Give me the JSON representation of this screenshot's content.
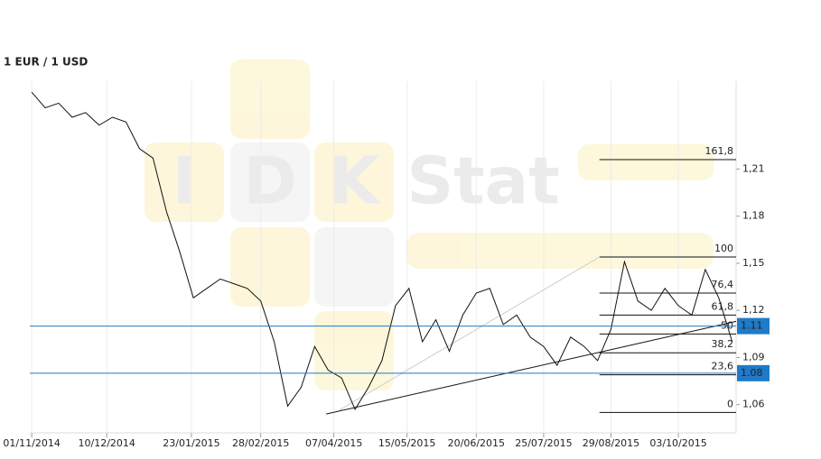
{
  "chart_data": {
    "type": "line",
    "title": "1 EUR / 1 USD",
    "watermark": {
      "letters": [
        "I",
        "D",
        "K"
      ],
      "word": "Stat"
    },
    "x": [
      "01/11/2014",
      "08/11/2014",
      "15/11/2014",
      "22/11/2014",
      "29/11/2014",
      "06/12/2014",
      "13/12/2014",
      "20/12/2014",
      "27/12/2014",
      "03/01/2015",
      "10/01/2015",
      "17/01/2015",
      "24/01/2015",
      "31/01/2015",
      "07/02/2015",
      "14/02/2015",
      "21/02/2015",
      "28/02/2015",
      "07/03/2015",
      "14/03/2015",
      "21/03/2015",
      "28/03/2015",
      "04/04/2015",
      "11/04/2015",
      "18/04/2015",
      "25/04/2015",
      "02/05/2015",
      "09/05/2015",
      "16/05/2015",
      "23/05/2015",
      "30/05/2015",
      "06/06/2015",
      "13/06/2015",
      "20/06/2015",
      "27/06/2015",
      "04/07/2015",
      "11/07/2015",
      "18/07/2015",
      "25/07/2015",
      "01/08/2015",
      "08/08/2015",
      "15/08/2015",
      "22/08/2015",
      "29/08/2015",
      "05/09/2015",
      "12/09/2015",
      "19/09/2015",
      "26/09/2015",
      "03/10/2015",
      "10/10/2015",
      "17/10/2015",
      "24/10/2015",
      "31/10/2015"
    ],
    "series": [
      {
        "color": "#111111",
        "values": [
          1.259,
          1.249,
          1.252,
          1.243,
          1.246,
          1.238,
          1.243,
          1.24,
          1.223,
          1.217,
          1.183,
          1.157,
          1.128,
          1.134,
          1.14,
          1.137,
          1.134,
          1.126,
          1.1,
          1.059,
          1.071,
          1.097,
          1.082,
          1.077,
          1.057,
          1.071,
          1.088,
          1.123,
          1.134,
          1.1,
          1.114,
          1.094,
          1.117,
          1.131,
          1.134,
          1.111,
          1.117,
          1.103,
          1.097,
          1.085,
          1.103,
          1.097,
          1.088,
          1.108,
          1.151,
          1.126,
          1.12,
          1.134,
          1.123,
          1.117,
          1.146,
          1.128,
          1.1
        ]
      }
    ],
    "xlim": [
      "31/10/2014",
      "02/11/2015"
    ],
    "xticks": [
      "01/11/2014",
      "10/12/2014",
      "23/01/2015",
      "28/02/2015",
      "07/04/2015",
      "15/05/2015",
      "20/06/2015",
      "25/07/2015",
      "29/08/2015",
      "03/10/2015"
    ],
    "ylim": [
      1.042,
      1.266
    ],
    "yticks": [
      {
        "value": 1.06,
        "label": "1,06"
      },
      {
        "value": 1.09,
        "label": "1,09"
      },
      {
        "value": 1.12,
        "label": "1,12"
      },
      {
        "value": 1.15,
        "label": "1,15"
      },
      {
        "value": 1.18,
        "label": "1,18"
      },
      {
        "value": 1.21,
        "label": "1,21"
      }
    ],
    "grid": "x",
    "fib_start": "23/08/2015",
    "fib_levels": [
      {
        "name": "161,8",
        "value": 1.216
      },
      {
        "name": "100",
        "value": 1.154
      },
      {
        "name": "76,4",
        "value": 1.131
      },
      {
        "name": "61,8",
        "value": 1.117
      },
      {
        "name": "50",
        "value": 1.105
      },
      {
        "name": "38,2",
        "value": 1.093
      },
      {
        "name": "23,6",
        "value": 1.079
      },
      {
        "name": "0",
        "value": 1.055
      }
    ],
    "price_lines": [
      {
        "value": 1.11,
        "color": "#1f7ac8"
      },
      {
        "value": 1.08,
        "color": "#1f7ac8"
      }
    ],
    "trend_lines": [
      {
        "color": "#111111",
        "x": [
          "03/04/2015",
          "02/11/2015"
        ],
        "y": [
          1.054,
          1.113
        ]
      },
      {
        "color": "#cccccc",
        "x": [
          "10/04/2015",
          "23/08/2015"
        ],
        "y": [
          1.0566,
          1.154
        ]
      }
    ]
  }
}
